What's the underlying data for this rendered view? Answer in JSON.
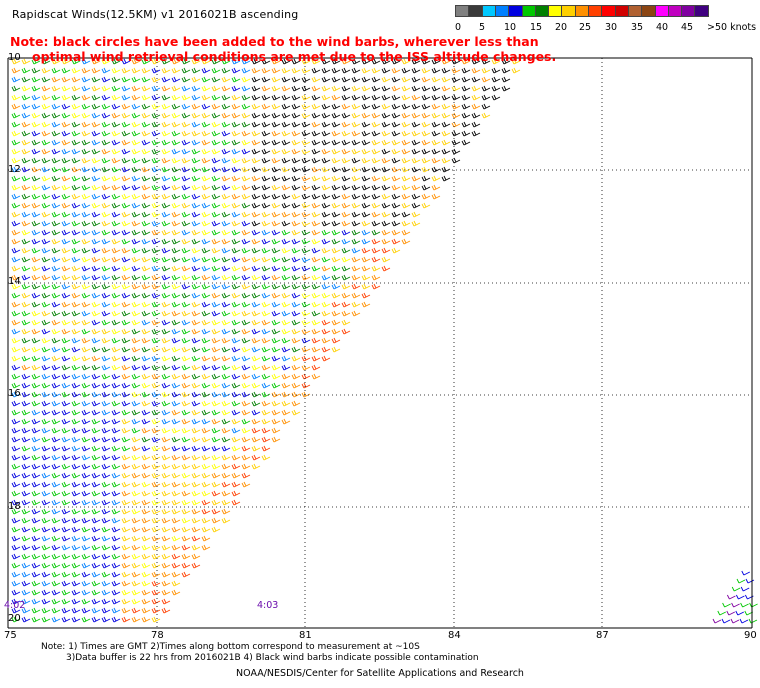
{
  "title": "Rapidscat Winds(12.5KM) v1 2016021B ascending",
  "note": {
    "line1": "Note: black circles have been added to the wind barbs, wherever less than",
    "line2": "optimal wind retrieval conditions are met due to the ISS altitude changes."
  },
  "legend": {
    "colors": [
      "#808080",
      "#3a3a3a",
      "#00c8ff",
      "#0080ff",
      "#0000e0",
      "#00c800",
      "#008000",
      "#ffff00",
      "#ffd000",
      "#ff9000",
      "#ff4000",
      "#ff0000",
      "#d00000",
      "#b06030",
      "#8b4513",
      "#ff00ff",
      "#c000c0",
      "#8000a0",
      "#400080"
    ],
    "labels": [
      "0",
      "5",
      "10",
      "15",
      "20",
      "25",
      "30",
      "35",
      "40",
      "45",
      ">50 knots"
    ]
  },
  "axes": {
    "x_labels": [
      "75",
      "78",
      "81",
      "84",
      "87",
      "90"
    ],
    "y_labels": [
      "10",
      "12",
      "14",
      "16",
      "18",
      "20"
    ]
  },
  "times": [
    "4:02",
    "4:03"
  ],
  "footnotes": {
    "line1": "Note: 1) Times are GMT 2)Times along bottom correspond to measurement at ~10S",
    "line2": "3)Data buffer is 22 hrs from 2016021B 4) Black wind barbs indicate possible contamination"
  },
  "credit": "NOAA/NESDIS/Center for Satellite Applications and Research"
}
